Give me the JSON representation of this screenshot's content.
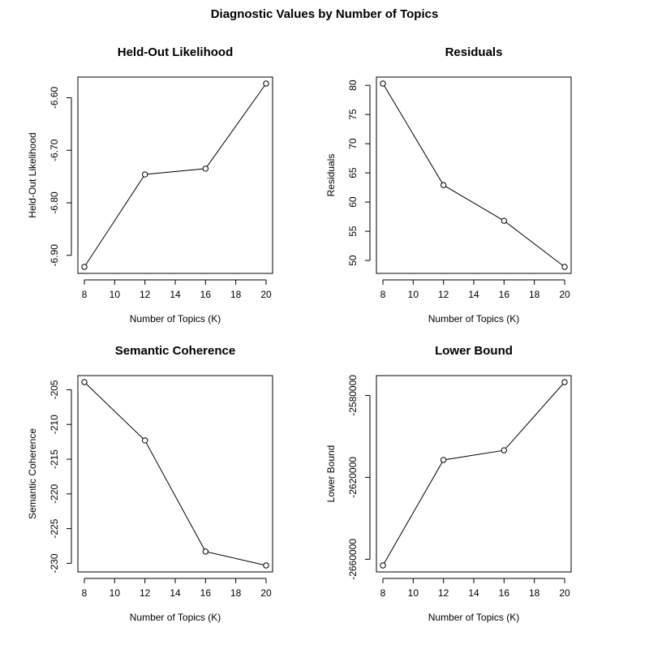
{
  "title": "Diagnostic Values by Number of Topics",
  "chart_data": [
    {
      "type": "line",
      "title": "Held-Out Likelihood",
      "xlabel": "Number of Topics (K)",
      "ylabel": "Held-Out Likelihood",
      "x": [
        8,
        12,
        16,
        20
      ],
      "y": [
        -6.922,
        -6.746,
        -6.735,
        -6.573
      ],
      "xlim": [
        8,
        20
      ],
      "ylim": [
        -6.922,
        -6.573
      ],
      "xticks": [
        8,
        10,
        12,
        14,
        16,
        18,
        20
      ],
      "yticks": [
        -6.9,
        -6.8,
        -6.7,
        -6.6
      ],
      "xtick_labels": [
        "8",
        "10",
        "12",
        "14",
        "16",
        "18",
        "20"
      ],
      "ytick_labels": [
        "-6.90",
        "-6.80",
        "-6.70",
        "-6.60"
      ],
      "grid": false,
      "marker": "open-circle"
    },
    {
      "type": "line",
      "title": "Residuals",
      "xlabel": "Number of Topics (K)",
      "ylabel": "Residuals",
      "x": [
        8,
        12,
        16,
        20
      ],
      "y": [
        80.3,
        62.9,
        56.8,
        48.9
      ],
      "xlim": [
        8,
        20
      ],
      "ylim": [
        48.9,
        80.3
      ],
      "xticks": [
        8,
        10,
        12,
        14,
        16,
        18,
        20
      ],
      "yticks": [
        50,
        55,
        60,
        65,
        70,
        75,
        80
      ],
      "xtick_labels": [
        "8",
        "10",
        "12",
        "14",
        "16",
        "18",
        "20"
      ],
      "ytick_labels": [
        "50",
        "55",
        "60",
        "65",
        "70",
        "75",
        "80"
      ],
      "grid": false,
      "marker": "open-circle"
    },
    {
      "type": "line",
      "title": "Semantic Coherence",
      "xlabel": "Number of Topics (K)",
      "ylabel": "Semantic Coherence",
      "x": [
        8,
        12,
        16,
        20
      ],
      "y": [
        -203.9,
        -212.3,
        -228.3,
        -230.3
      ],
      "xlim": [
        8,
        20
      ],
      "ylim": [
        -230.3,
        -203.9
      ],
      "xticks": [
        8,
        10,
        12,
        14,
        16,
        18,
        20
      ],
      "yticks": [
        -230,
        -225,
        -220,
        -215,
        -210,
        -205
      ],
      "xtick_labels": [
        "8",
        "10",
        "12",
        "14",
        "16",
        "18",
        "20"
      ],
      "ytick_labels": [
        "-230",
        "-225",
        "-220",
        "-215",
        "-210",
        "-205"
      ],
      "grid": false,
      "marker": "open-circle"
    },
    {
      "type": "line",
      "title": "Lower Bound",
      "xlabel": "Number of Topics (K)",
      "ylabel": "Lower Bound",
      "x": [
        8,
        12,
        16,
        20
      ],
      "y": [
        -2663000,
        -2611500,
        -2606800,
        -2573500
      ],
      "xlim": [
        8,
        20
      ],
      "ylim": [
        -2663000,
        -2573500
      ],
      "xticks": [
        8,
        10,
        12,
        14,
        16,
        18,
        20
      ],
      "yticks": [
        -2660000,
        -2620000,
        -2580000
      ],
      "xtick_labels": [
        "8",
        "10",
        "12",
        "14",
        "16",
        "18",
        "20"
      ],
      "ytick_labels": [
        "-2660000",
        "-2620000",
        "-2580000"
      ],
      "grid": false,
      "marker": "open-circle"
    }
  ]
}
